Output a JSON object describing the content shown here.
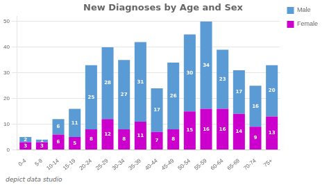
{
  "chart_data": {
    "type": "bar",
    "title": "New Diagnoses by Age and Sex",
    "annotations": [
      "depict data studio"
    ],
    "categories": [
      "0-4",
      "5-9",
      "10-14",
      "15-19",
      "20-24",
      "25-29",
      "30-34",
      "35-39",
      "40-44",
      "45-49",
      "50-54",
      "55-59",
      "60-64",
      "65-69",
      "70-74",
      "75+"
    ],
    "series": [
      {
        "name": "Female",
        "color": "#cc00cc",
        "values": [
          3,
          3,
          6,
          5,
          8,
          12,
          8,
          11,
          7,
          8,
          15,
          16,
          16,
          14,
          9,
          13
        ]
      },
      {
        "name": "Male",
        "color": "#5b9bd5",
        "values": [
          2,
          1,
          6,
          11,
          25,
          28,
          27,
          31,
          17,
          26,
          30,
          34,
          23,
          17,
          16,
          20
        ]
      }
    ],
    "stacked": true,
    "data_labels": true,
    "ylim": [
      0,
      52
    ],
    "yticks": [
      0,
      10,
      20,
      30,
      40,
      50
    ],
    "grid": true,
    "legend": "right"
  }
}
